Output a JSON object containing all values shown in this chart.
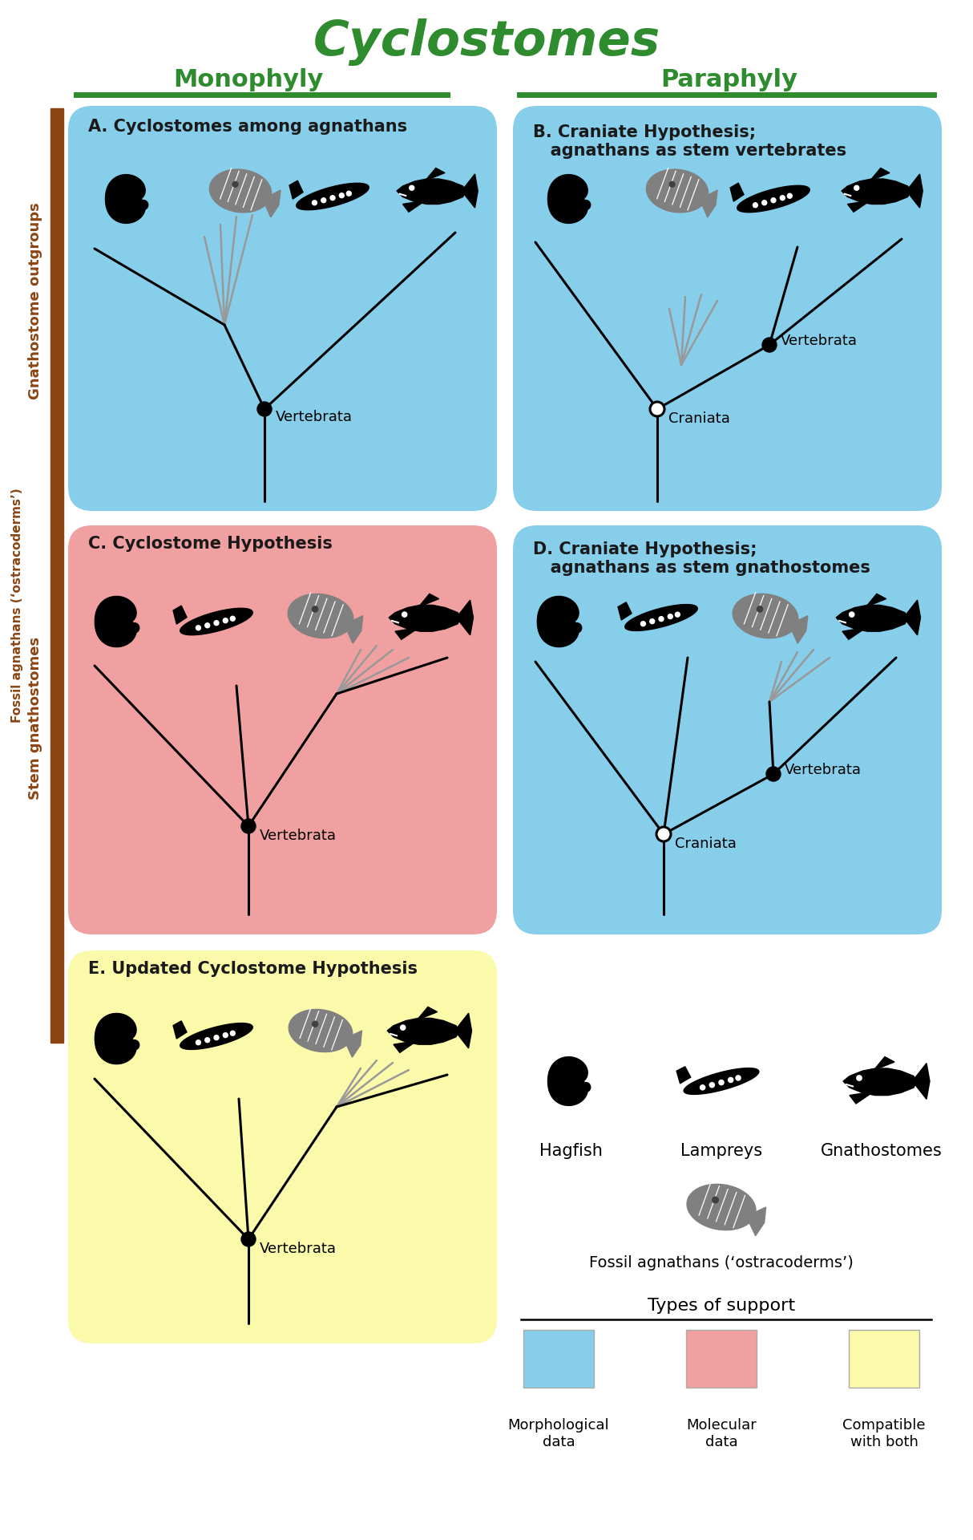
{
  "title": "Cyclostomes",
  "monophyly_label": "Monophyly",
  "paraphyly_label": "Paraphyly",
  "green_color": "#2e8b2e",
  "brown_color": "#8B4513",
  "blue_bg": "#87CEEB",
  "pink_bg": "#F0A0A0",
  "yellow_bg": "#FAFAAA",
  "panel_A_title": "A. Cyclostomes among agnathans",
  "panel_B_title": "B. Craniate Hypothesis;\n   agnathans as stem vertebrates",
  "panel_C_title": "C. Cyclostome Hypothesis",
  "panel_D_title": "D. Craniate Hypothesis;\n   agnathans as stem gnathostomes",
  "panel_E_title": "E. Updated Cyclostome Hypothesis",
  "vertebrata_label": "Vertebrata",
  "craniata_label": "Craniata",
  "hagfish_label": "Hagfish",
  "lampreys_label": "Lampreys",
  "gnathostomes_label": "Gnathostomes",
  "fossil_label": "Fossil agnathans (‘ostracoderms’)",
  "support_title": "Types of support",
  "morpho_label": "Morphological\ndata",
  "molec_label": "Molecular\ndata",
  "compat_label": "Compatible\nwith both",
  "left_label_gnath": "Gnathostome outgroups",
  "left_label_stem": "Stem gnathostomes",
  "fossil_left_label": "Fossil agnathans (‘ostracoderms’)"
}
